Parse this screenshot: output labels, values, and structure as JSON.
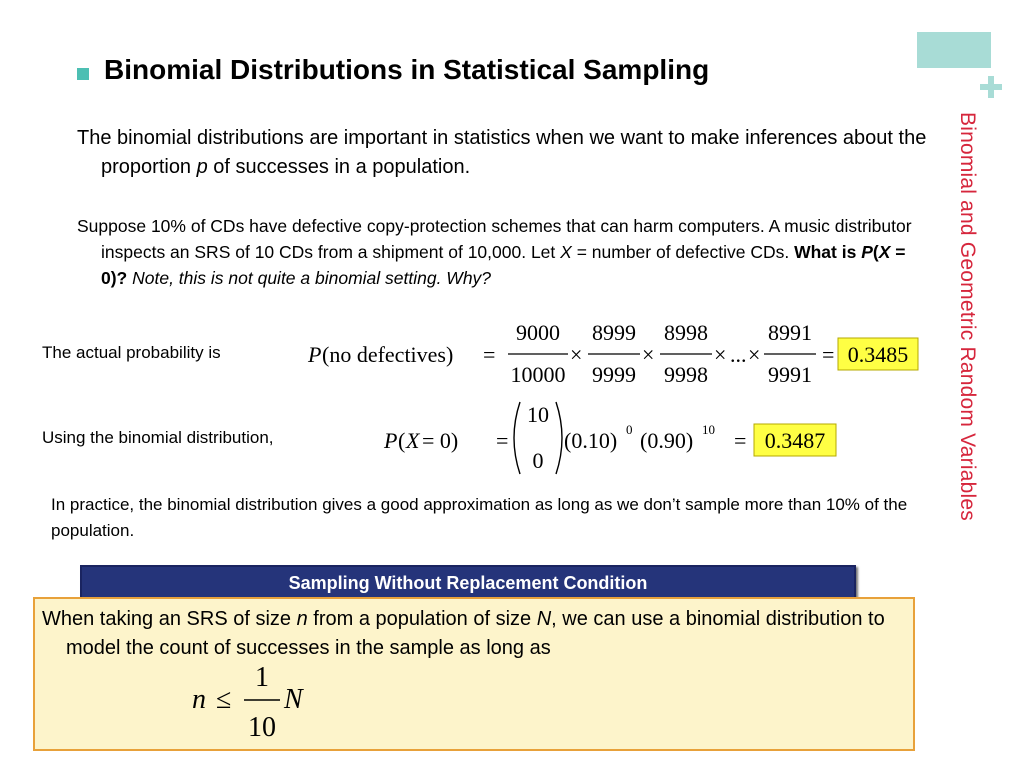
{
  "side_title": "Binomial and Geometric Random Variables",
  "heading": "Binomial Distributions in Statistical Sampling",
  "intro": {
    "before": "The binomial distributions are important in statistics when we want to make inferences about the proportion ",
    "var": "p",
    "after": " of successes in a population."
  },
  "example": {
    "text1": "Suppose 10% of CDs have defective copy-protection schemes that can harm computers. A music distributor inspects an SRS of 10 CDs from a shipment of 10,000.  Let ",
    "var_x": "X",
    "text2": " = number of defective CDs.  ",
    "q_what": "What is ",
    "q_p": "P",
    "q_paren": "(",
    "q_x": "X",
    "q_rest": " = 0)?",
    "note": " Note, this is not quite a binomial setting.  Why?"
  },
  "actual": {
    "label": "The actual probability is",
    "lhs_p": "P",
    "lhs_rest": "(no defectives)",
    "equals": "=",
    "fractions": [
      {
        "num": "9000",
        "den": "10000"
      },
      {
        "num": "8999",
        "den": "9999"
      },
      {
        "num": "8998",
        "den": "9998"
      },
      {
        "num": "8991",
        "den": "9991"
      }
    ],
    "times": "×",
    "dots": "...",
    "result": "0.3485"
  },
  "binomial": {
    "label": "Using the binomial distribution,",
    "lhs_p": "P",
    "lhs_open": "(",
    "lhs_x": "X",
    "lhs_rest": " = 0)",
    "equals": "=",
    "n": "10",
    "k": "0",
    "base1": "(0.10)",
    "exp1": "0",
    "base2": "(0.90)",
    "exp2": "10",
    "result": "0.3487"
  },
  "practice": "In practice, the binomial distribution gives a good approximation as long as we don’t sample more than 10% of the population.",
  "condition": {
    "title": "Sampling Without Replacement Condition",
    "t1": "When taking an SRS of size ",
    "n": "n",
    "t2": " from a population of size ",
    "N": "N",
    "t3": ", we can use a binomial distribution to model the count of successes in the sample as long as",
    "ineq_n": "n",
    "ineq_le": "≤",
    "ineq_num": "1",
    "ineq_den": "10",
    "ineq_N": "N"
  },
  "colors": {
    "accent_teal": "#a8dcd6",
    "side_title": "#d6263c",
    "banner": "#25347a",
    "highlight": "#ffff44",
    "box_fill": "#fdf4cb",
    "box_border": "#e8a13a"
  }
}
